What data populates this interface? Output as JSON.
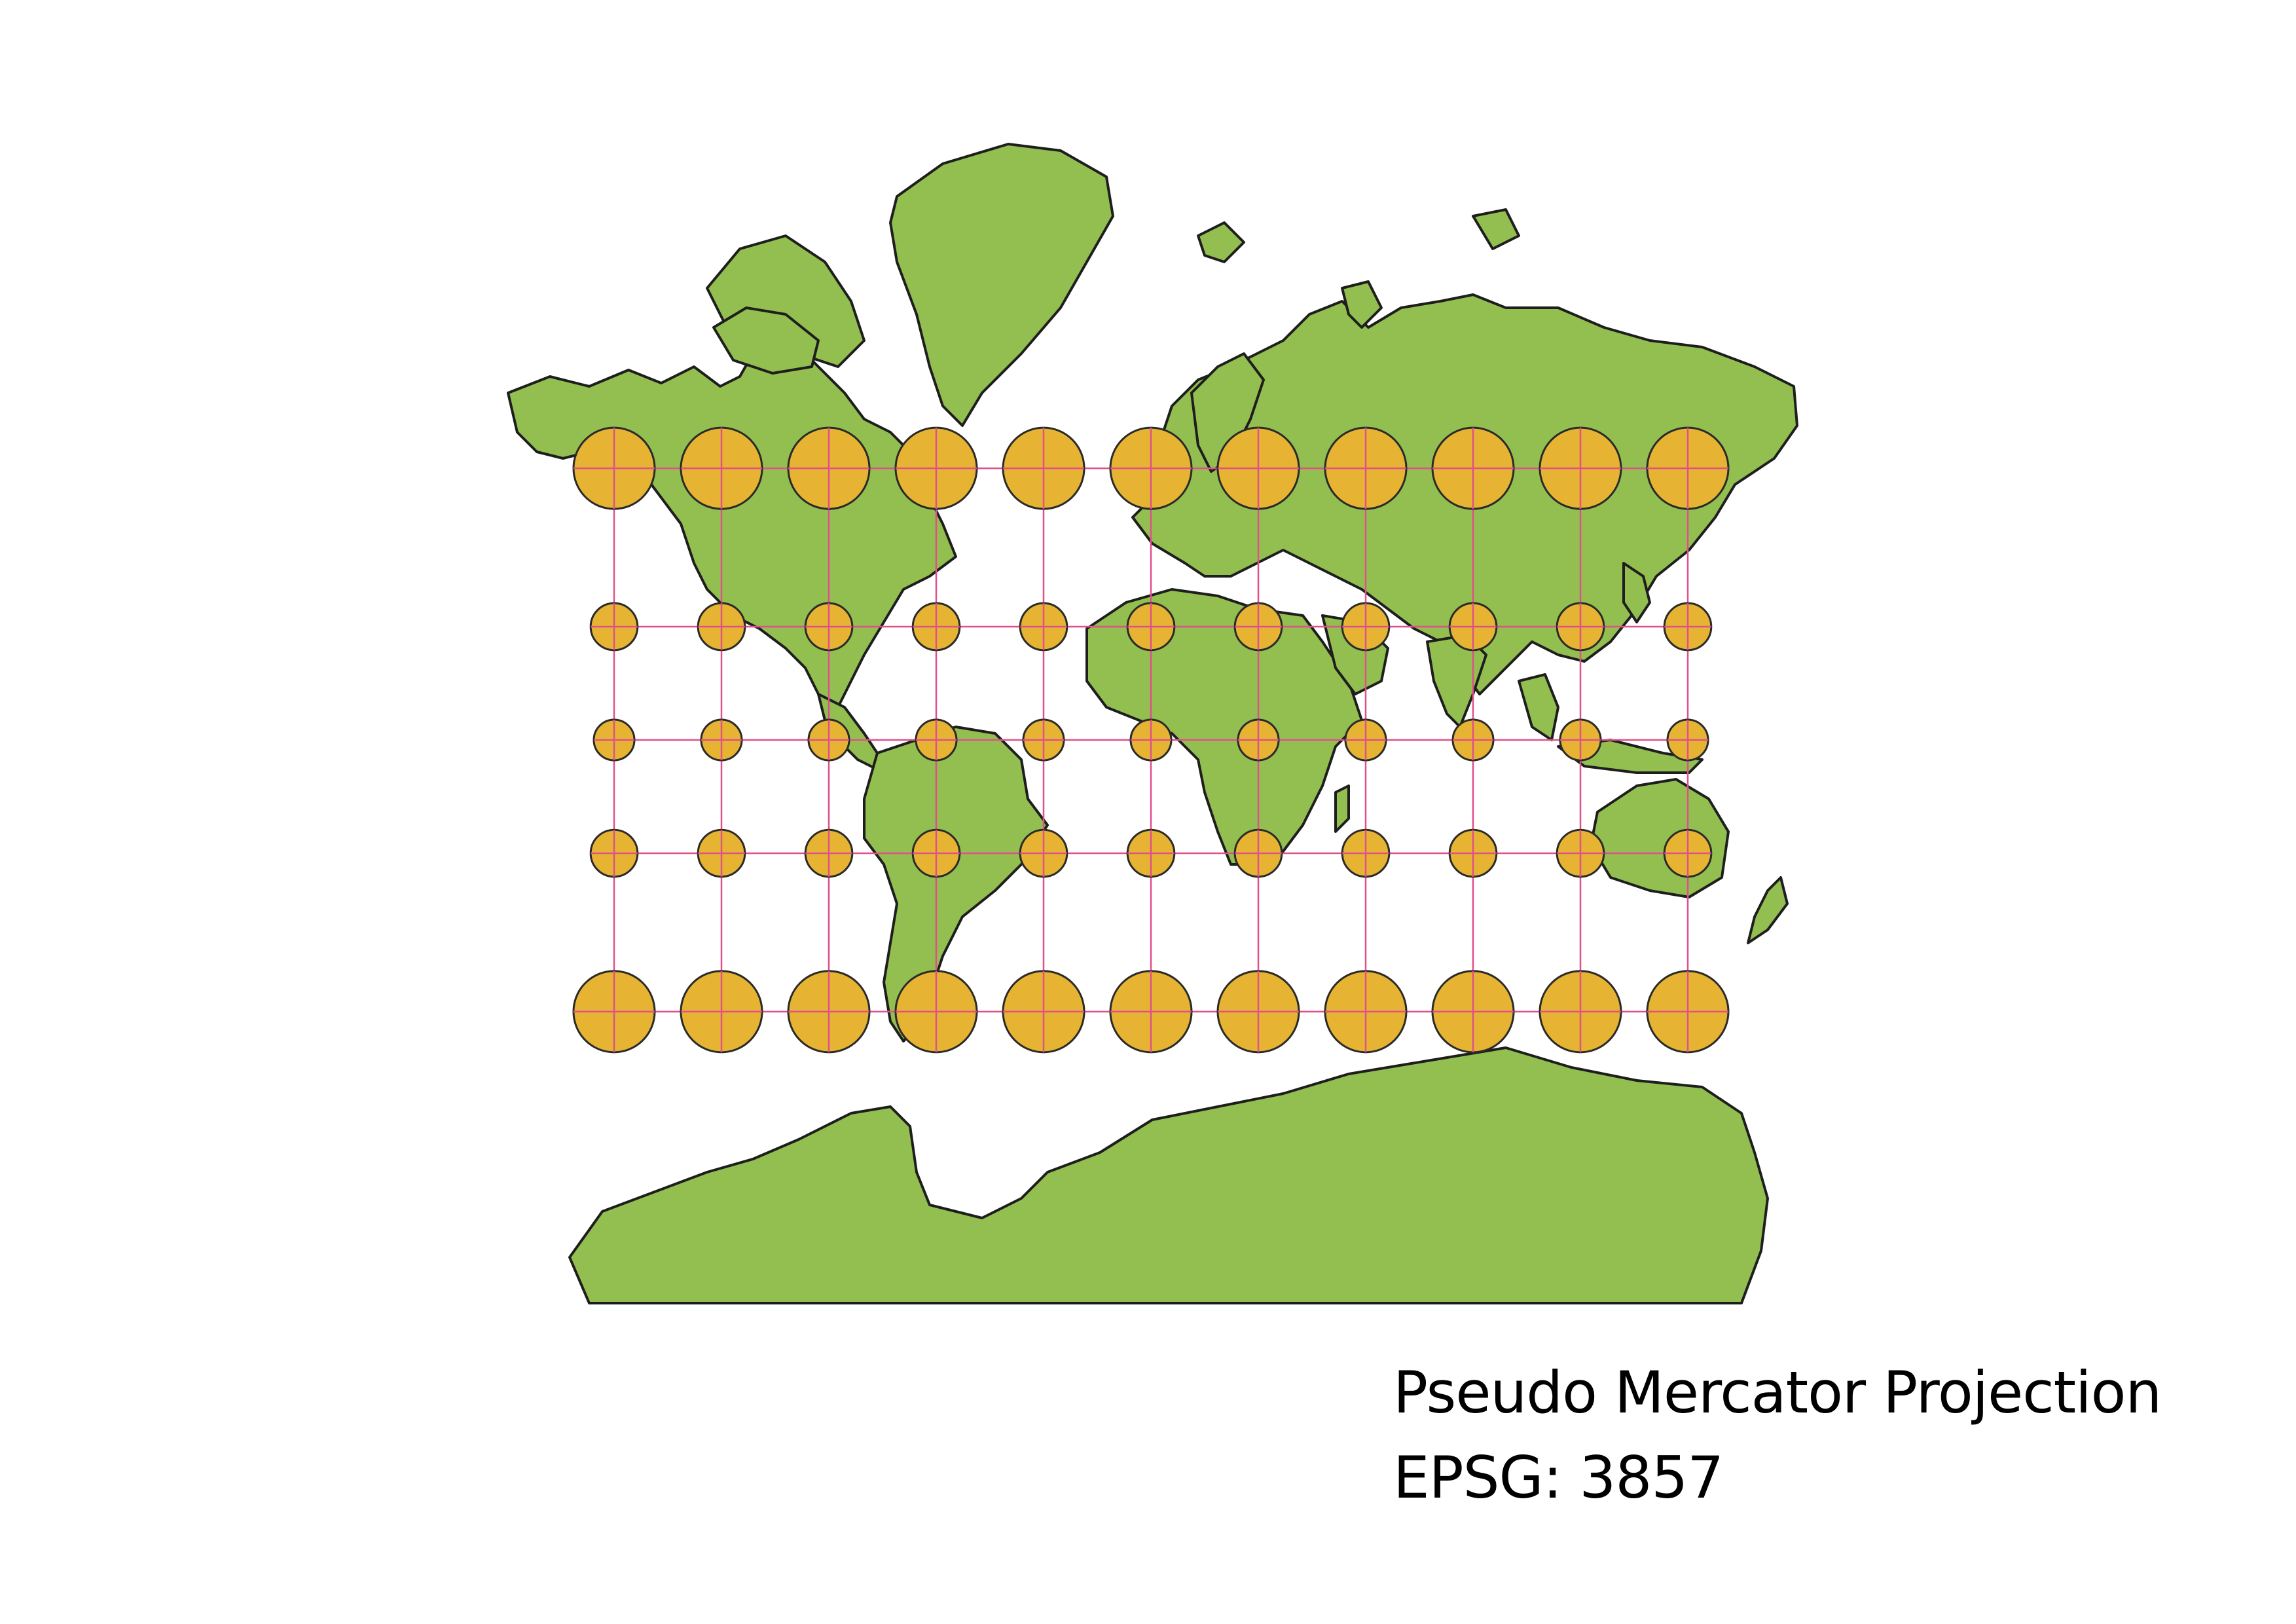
{
  "map": {
    "projection_name": "Pseudo Mercator Projection",
    "epsg_label": "EPSG: 3857",
    "colors": {
      "land": "#92bf50",
      "coastline": "#1e1e1e",
      "graticule": "#e0508c",
      "indicatrix_fill": "#e6b432",
      "indicatrix_stroke": "#2a2a2a",
      "background": "#ffffff"
    },
    "graticule": {
      "longitudes_deg": [
        -150,
        -120,
        -90,
        -60,
        -30,
        0,
        30,
        60,
        90,
        120,
        150
      ],
      "latitudes_deg": [
        60,
        30,
        0,
        -30,
        -60
      ]
    },
    "indicatrix": {
      "note_scale_rule": "circle radius grows with 1/cos(latitude)"
    }
  }
}
